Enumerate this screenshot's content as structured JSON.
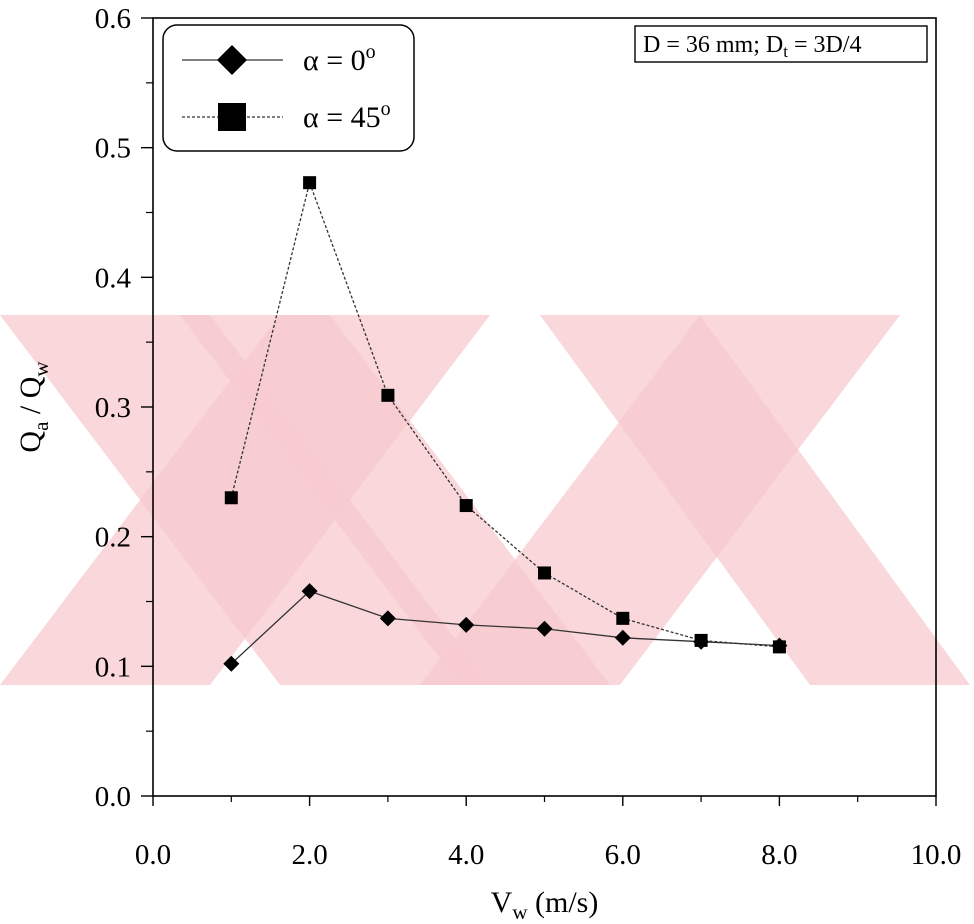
{
  "chart_data": {
    "type": "line",
    "x": [
      1,
      2,
      3,
      4,
      5,
      6,
      7,
      8
    ],
    "series": [
      {
        "name": "α = 0°",
        "marker": "diamond",
        "values": [
          0.102,
          0.158,
          0.137,
          0.132,
          0.129,
          0.122,
          0.119,
          0.116
        ]
      },
      {
        "name": "α = 45°",
        "marker": "square",
        "values": [
          0.23,
          0.473,
          0.309,
          0.224,
          0.172,
          0.137,
          0.12,
          0.115
        ]
      }
    ],
    "xlabel": {
      "main": "V",
      "sub": "w",
      "unit": " (m/s)"
    },
    "ylabel": {
      "q1": "Q",
      "s1": "a",
      "sep": " / ",
      "q2": "Q",
      "s2": "w"
    },
    "xlim": [
      0,
      10
    ],
    "ylim": [
      0,
      0.6
    ],
    "xticks": [
      "0.0",
      "2.0",
      "4.0",
      "6.0",
      "8.0",
      "10.0"
    ],
    "yticks": [
      "0.0",
      "0.1",
      "0.2",
      "0.3",
      "0.4",
      "0.5",
      "0.6"
    ],
    "legend_labels": [
      {
        "prefix": "α = 0",
        "sup": "o"
      },
      {
        "prefix": "α = 45",
        "sup": "o"
      }
    ],
    "annotation": {
      "a": "D = 36 mm; D",
      "sub": "t",
      "b": " = 3D/4"
    },
    "legend_position": "top-left",
    "grid": false,
    "colors": {
      "line": "#333333",
      "marker": "#000000",
      "watermark": "#f7c9cf"
    }
  }
}
